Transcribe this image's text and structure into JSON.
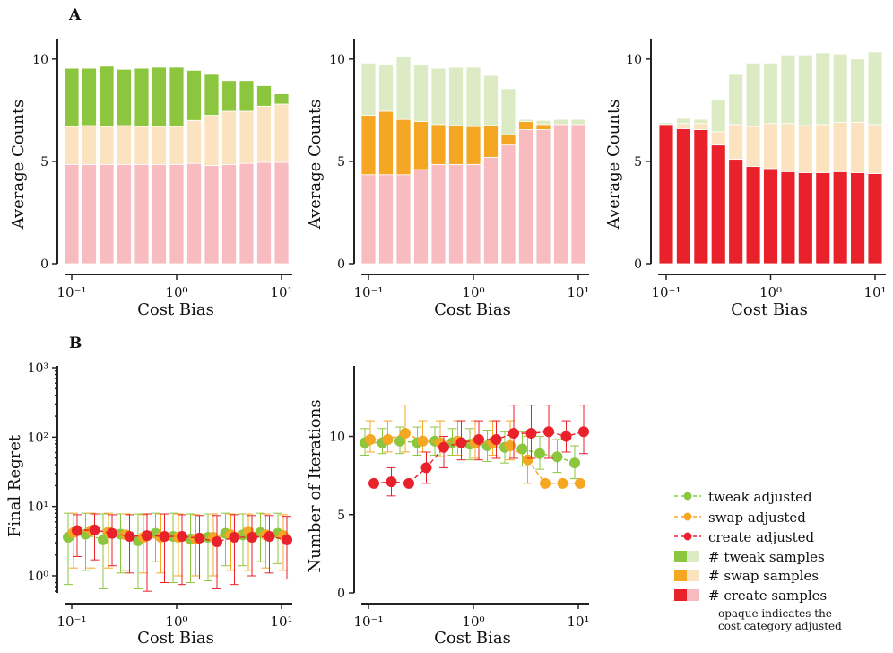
{
  "panel_labels": {
    "a": "A",
    "b": "B"
  },
  "colors": {
    "tweak": "#8cc63f",
    "tweak_light": "#dcebc4",
    "swap": "#f5a623",
    "swap_light": "#fbe3bf",
    "create": "#e8212b",
    "create_light": "#f8bcc0"
  },
  "chart_data": [
    {
      "id": "count_tweak",
      "type": "bar",
      "stacked": true,
      "xscale": "log",
      "xlabel": "Cost Bias",
      "ylabel": "Average Counts",
      "xticks": [
        "10⁻¹",
        "10⁰",
        "10¹"
      ],
      "yticks": [
        "0",
        "5",
        "10"
      ],
      "ylim": [
        0,
        11
      ],
      "x": [
        0.1,
        0.1468,
        0.2154,
        0.3162,
        0.4642,
        0.6813,
        1.0,
        1.4678,
        2.1544,
        3.1623,
        4.6416,
        6.8129,
        10.0
      ],
      "adjusted": "tweak",
      "series": [
        {
          "name": "create",
          "values": [
            4.85,
            4.85,
            4.85,
            4.85,
            4.85,
            4.85,
            4.85,
            4.9,
            4.8,
            4.85,
            4.9,
            4.95,
            4.95
          ]
        },
        {
          "name": "swap",
          "values": [
            1.85,
            1.9,
            1.85,
            1.9,
            1.85,
            1.85,
            1.85,
            2.1,
            2.45,
            2.6,
            2.55,
            2.75,
            2.85
          ]
        },
        {
          "name": "tweak",
          "values": [
            2.85,
            2.8,
            2.95,
            2.75,
            2.85,
            2.9,
            2.9,
            2.45,
            2.0,
            1.5,
            1.5,
            1.0,
            0.5
          ]
        }
      ]
    },
    {
      "id": "count_swap",
      "type": "bar",
      "stacked": true,
      "xscale": "log",
      "xlabel": "Cost Bias",
      "ylabel": "Average Counts",
      "xticks": [
        "10⁻¹",
        "10⁰",
        "10¹"
      ],
      "yticks": [
        "0",
        "5",
        "10"
      ],
      "ylim": [
        0,
        11
      ],
      "x": [
        0.1,
        0.1468,
        0.2154,
        0.3162,
        0.4642,
        0.6813,
        1.0,
        1.4678,
        2.1544,
        3.1623,
        4.6416,
        6.8129,
        10.0
      ],
      "adjusted": "swap",
      "series": [
        {
          "name": "create",
          "values": [
            4.35,
            4.35,
            4.35,
            4.6,
            4.85,
            4.85,
            4.85,
            5.2,
            5.8,
            6.55,
            6.55,
            6.8,
            6.8
          ]
        },
        {
          "name": "swap",
          "values": [
            2.9,
            3.1,
            2.7,
            2.35,
            1.95,
            1.9,
            1.85,
            1.55,
            0.5,
            0.4,
            0.25,
            0.0,
            0.0
          ]
        },
        {
          "name": "tweak",
          "values": [
            2.55,
            2.3,
            3.05,
            2.75,
            2.75,
            2.85,
            2.9,
            2.45,
            2.25,
            0.1,
            0.2,
            0.25,
            0.25
          ]
        }
      ]
    },
    {
      "id": "count_create",
      "type": "bar",
      "stacked": true,
      "xscale": "log",
      "xlabel": "Cost Bias",
      "ylabel": "Average Counts",
      "xticks": [
        "10⁻¹",
        "10⁰",
        "10¹"
      ],
      "yticks": [
        "0",
        "5",
        "10"
      ],
      "ylim": [
        0,
        11
      ],
      "x": [
        0.1,
        0.1468,
        0.2154,
        0.3162,
        0.4642,
        0.6813,
        1.0,
        1.4678,
        2.1544,
        3.1623,
        4.6416,
        6.8129,
        10.0
      ],
      "adjusted": "create",
      "series": [
        {
          "name": "create",
          "values": [
            6.8,
            6.6,
            6.55,
            5.8,
            5.1,
            4.75,
            4.65,
            4.5,
            4.45,
            4.45,
            4.5,
            4.45,
            4.4
          ]
        },
        {
          "name": "swap",
          "values": [
            0.0,
            0.25,
            0.3,
            0.65,
            1.7,
            1.95,
            2.2,
            2.35,
            2.3,
            2.35,
            2.4,
            2.45,
            2.4
          ]
        },
        {
          "name": "tweak",
          "values": [
            0.1,
            0.25,
            0.2,
            1.55,
            2.45,
            3.1,
            2.95,
            3.35,
            3.45,
            3.5,
            3.35,
            3.1,
            3.55
          ]
        }
      ]
    },
    {
      "id": "final_regret",
      "type": "line",
      "yscale": "log",
      "xscale": "log",
      "xlabel": "Cost Bias",
      "ylabel": "Final Regret",
      "xticks": [
        "10⁻¹",
        "10⁰",
        "10¹"
      ],
      "yticks": [
        "10⁰",
        "10¹",
        "10²",
        "10³"
      ],
      "ylim": [
        0.6,
        1000
      ],
      "x": [
        0.1,
        0.1468,
        0.2154,
        0.3162,
        0.4642,
        0.6813,
        1.0,
        1.4678,
        2.1544,
        3.1623,
        4.6416,
        6.8129,
        10.0
      ],
      "series": [
        {
          "name": "tweak adjusted",
          "values": [
            3.6,
            4.0,
            3.3,
            4.0,
            3.2,
            4.1,
            3.7,
            3.4,
            3.6,
            4.1,
            3.9,
            4.2,
            4.1
          ],
          "lower": [
            0.75,
            1.2,
            0.65,
            1.1,
            0.65,
            1.6,
            0.8,
            0.8,
            0.85,
            1.4,
            1.4,
            1.6,
            1.5
          ],
          "upper": [
            8.0,
            8.0,
            7.8,
            7.8,
            7.8,
            8.0,
            8.0,
            7.8,
            7.8,
            8.0,
            7.8,
            8.0,
            8.0
          ]
        },
        {
          "name": "swap adjusted",
          "values": [
            4.2,
            4.5,
            4.3,
            3.9,
            3.6,
            3.6,
            3.6,
            3.4,
            3.6,
            3.9,
            4.4,
            3.9,
            3.8
          ],
          "lower": [
            1.3,
            1.3,
            1.3,
            1.2,
            1.1,
            1.1,
            1.0,
            1.0,
            1.0,
            1.2,
            1.2,
            1.3,
            1.2
          ],
          "upper": [
            8.0,
            8.0,
            8.0,
            7.8,
            7.6,
            7.8,
            7.8,
            7.6,
            7.8,
            7.8,
            7.8,
            7.8,
            7.6
          ]
        },
        {
          "name": "create adjusted",
          "values": [
            4.5,
            4.6,
            4.1,
            3.7,
            3.8,
            3.7,
            3.7,
            3.5,
            3.1,
            3.6,
            3.6,
            3.7,
            3.3
          ],
          "lower": [
            1.9,
            1.7,
            1.4,
            1.1,
            0.6,
            0.8,
            0.75,
            0.9,
            0.65,
            0.75,
            1.0,
            1.1,
            0.9
          ],
          "upper": [
            7.6,
            7.8,
            7.6,
            7.6,
            7.8,
            7.8,
            7.6,
            7.4,
            7.4,
            7.6,
            7.4,
            7.4,
            7.2
          ]
        }
      ]
    },
    {
      "id": "num_iterations",
      "type": "line",
      "xscale": "log",
      "xlabel": "Cost Bias",
      "ylabel": "Number of Iterations",
      "xticks": [
        "10⁻¹",
        "10⁰",
        "10¹"
      ],
      "yticks": [
        "0",
        "5",
        "10"
      ],
      "ylim": [
        0,
        14.5
      ],
      "x": [
        0.1,
        0.1468,
        0.2154,
        0.3162,
        0.4642,
        0.6813,
        1.0,
        1.4678,
        2.1544,
        3.1623,
        4.6416,
        6.8129,
        10.0
      ],
      "series": [
        {
          "name": "tweak adjusted",
          "values": [
            9.6,
            9.6,
            9.7,
            9.6,
            9.7,
            9.6,
            9.5,
            9.4,
            9.3,
            9.2,
            8.9,
            8.7,
            8.3
          ],
          "lower": [
            8.8,
            8.9,
            8.9,
            8.8,
            8.8,
            8.8,
            8.5,
            8.4,
            8.3,
            8.1,
            7.9,
            7.7,
            7.3
          ],
          "upper": [
            10.5,
            10.5,
            10.6,
            10.6,
            10.6,
            10.5,
            10.5,
            10.4,
            10.3,
            10.3,
            10.0,
            9.8,
            9.4
          ]
        },
        {
          "name": "swap adjusted",
          "values": [
            9.8,
            9.8,
            10.2,
            9.7,
            9.6,
            9.7,
            9.6,
            9.6,
            9.4,
            8.5,
            7.0,
            7.0,
            7.0
          ],
          "lower": [
            9.0,
            9.0,
            9.0,
            9.0,
            8.7,
            8.8,
            8.6,
            8.8,
            8.5,
            7.0,
            7.0,
            7.0,
            7.0
          ],
          "upper": [
            11.0,
            11.0,
            12.0,
            11.0,
            11.0,
            11.0,
            11.0,
            11.0,
            11.0,
            10.0,
            7.0,
            7.0,
            7.0
          ]
        },
        {
          "name": "create adjusted",
          "values": [
            7.0,
            7.1,
            7.0,
            8.0,
            9.3,
            9.6,
            9.8,
            9.8,
            10.2,
            10.2,
            10.3,
            10.0,
            10.3
          ],
          "lower": [
            7.0,
            6.2,
            7.0,
            7.0,
            8.0,
            8.5,
            8.5,
            8.6,
            8.6,
            8.6,
            8.6,
            9.0,
            8.9
          ],
          "upper": [
            7.0,
            8.0,
            7.0,
            9.0,
            10.0,
            11.0,
            11.0,
            11.0,
            12.0,
            12.0,
            12.0,
            11.0,
            12.0
          ]
        }
      ]
    }
  ],
  "legend": {
    "lines": [
      "tweak adjusted",
      "swap adjusted",
      "create adjusted"
    ],
    "patches": [
      "# tweak samples",
      "# swap samples",
      "# create samples"
    ],
    "note_line1": "opaque indicates the",
    "note_line2": "cost category adjusted"
  }
}
